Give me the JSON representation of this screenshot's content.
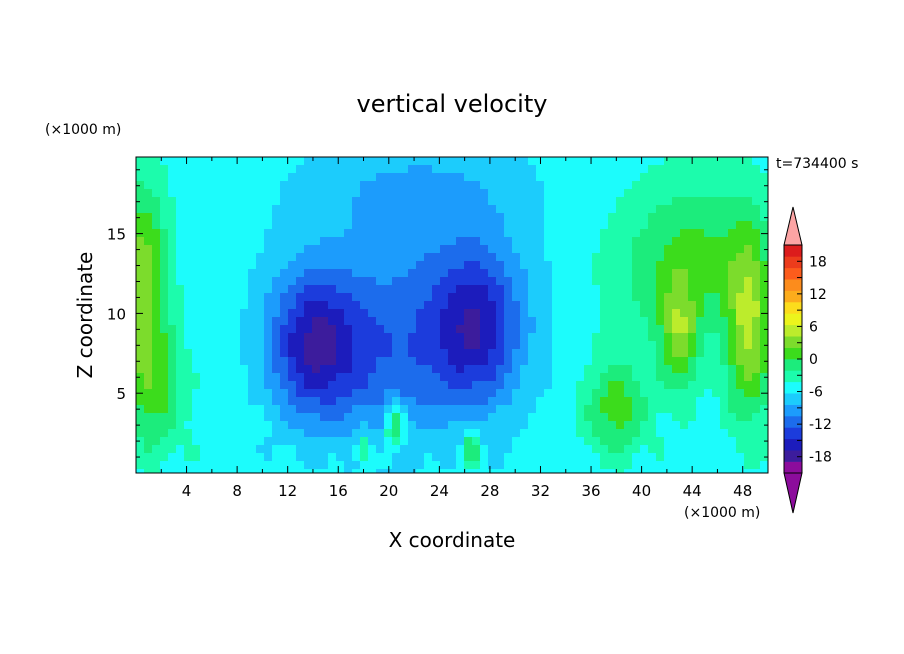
{
  "chart_data": {
    "type": "heatmap",
    "title": "vertical velocity",
    "xlabel": "X coordinate",
    "ylabel": "Z coordinate",
    "x_unit": "(×1000 m)",
    "y_unit": "(×1000 m)",
    "time_label": "t=734400 s",
    "xlim": [
      0,
      50
    ],
    "ylim": [
      0,
      19.8
    ],
    "x_ticks": [
      "4",
      "8",
      "12",
      "16",
      "20",
      "24",
      "28",
      "32",
      "36",
      "40",
      "44",
      "48"
    ],
    "y_ticks": [
      "5",
      "10",
      "15"
    ],
    "colorbar": {
      "range": [
        -21,
        21
      ],
      "step": 3,
      "tick_labels": [
        "18",
        "12",
        "6",
        "0",
        "-6",
        "-12",
        "-18"
      ],
      "level_colors": [
        "#8c0c9c",
        "#3c1c9c",
        "#1c1cbc",
        "#1c3cdc",
        "#1c6cec",
        "#1c9cfc",
        "#1cccfc",
        "#1cfcfc",
        "#1cfcac",
        "#1cec7c",
        "#3cdc1c",
        "#7cdc2c",
        "#bcec2c",
        "#ecf41c",
        "#fcdc1c",
        "#fcac1c",
        "#fc8c1c",
        "#fc5c1c",
        "#ec3c1c",
        "#dc1c1c"
      ],
      "over_color": "#fca4a4",
      "under_color": "#8c0c9c"
    },
    "features": [
      {
        "x": 14,
        "z": 8,
        "sx": 3.5,
        "sz": 4.5,
        "w": -14
      },
      {
        "x": 27,
        "z": 9,
        "sx": 3.5,
        "sz": 5,
        "w": -12
      },
      {
        "x": 20,
        "z": 6,
        "sx": 6,
        "sz": 5,
        "w": -6
      },
      {
        "x": 22,
        "z": 11,
        "sx": 9,
        "sz": 6,
        "w": -6
      },
      {
        "x": 22,
        "z": 18,
        "sx": 9,
        "sz": 3,
        "w": -4
      },
      {
        "x": 20.5,
        "z": 3,
        "sx": 0.8,
        "sz": 1.4,
        "w": 12
      },
      {
        "x": 26.5,
        "z": 1.5,
        "sx": 0.7,
        "sz": 1.3,
        "w": 10
      },
      {
        "x": 18,
        "z": 1.5,
        "sx": 0.6,
        "sz": 1,
        "w": 8
      },
      {
        "x": 0.5,
        "z": 12,
        "sx": 2,
        "sz": 6,
        "w": 13
      },
      {
        "x": 1.5,
        "z": 5,
        "sx": 2.5,
        "sz": 4,
        "w": 7
      },
      {
        "x": 38,
        "z": 4,
        "sx": 2.5,
        "sz": 3,
        "w": 9
      },
      {
        "x": 43,
        "z": 8.5,
        "sx": 1.5,
        "sz": 3.5,
        "w": 10
      },
      {
        "x": 48.5,
        "z": 9,
        "sx": 1.8,
        "sz": 6,
        "w": 13
      },
      {
        "x": 45,
        "z": 14,
        "sx": 5,
        "sz": 5,
        "w": 6
      },
      {
        "x": 41,
        "z": 12,
        "sx": 5,
        "sz": 5,
        "w": 4
      }
    ],
    "background": 1.5
  }
}
